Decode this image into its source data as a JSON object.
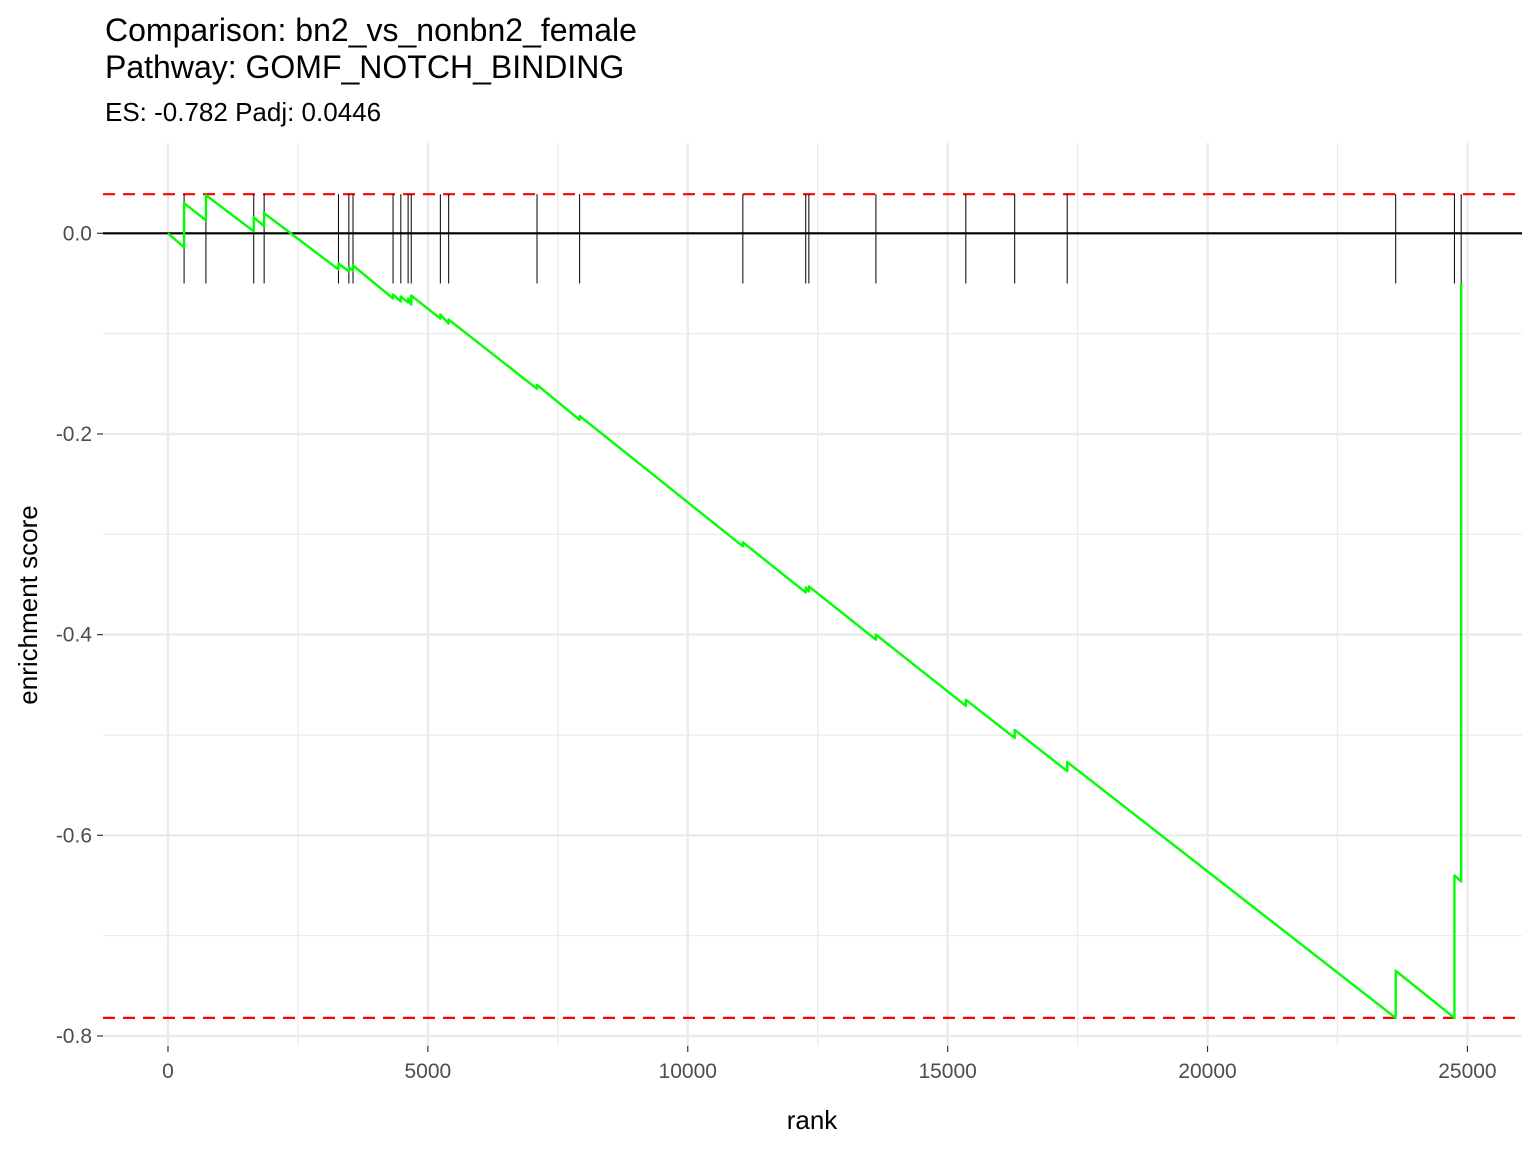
{
  "chart_data": {
    "type": "line",
    "title_lines": [
      "Comparison: bn2_vs_nonbn2_female",
      "Pathway: GOMF_NOTCH_BINDING"
    ],
    "subtitle": "ES: -0.782 Padj: 0.0446",
    "xlabel": "rank",
    "ylabel": "enrichment score",
    "xlim": [
      -1250,
      26050
    ],
    "ylim": [
      -0.81,
      0.09
    ],
    "x_ticks": [
      0,
      5000,
      10000,
      15000,
      20000,
      25000
    ],
    "x_tick_labels": [
      "0",
      "5000",
      "10000",
      "15000",
      "20000",
      "25000"
    ],
    "y_ticks": [
      0.0,
      -0.2,
      -0.4,
      -0.6,
      -0.8
    ],
    "y_tick_labels": [
      "0.0",
      "-0.2",
      "-0.4",
      "-0.6",
      "-0.8"
    ],
    "grid": true,
    "zero_line": 0,
    "threshold_lines": [
      0.039,
      -0.782
    ],
    "hit_ranks": [
      310,
      730,
      1650,
      1850,
      3280,
      3480,
      3560,
      4330,
      4480,
      4620,
      4680,
      5240,
      5400,
      7100,
      7920,
      11060,
      12270,
      12330,
      13620,
      15350,
      16290,
      17300,
      23620,
      24750,
      24880
    ],
    "series": [
      {
        "x": [
          0,
          310,
          310,
          730,
          730,
          1650,
          1650,
          1850,
          1850,
          3280,
          3280,
          3480,
          3480,
          3560,
          3560,
          4330,
          4330,
          4480,
          4480,
          4620,
          4620,
          4680,
          4680,
          5240,
          5240,
          5400,
          5400,
          7100,
          7100,
          7920,
          7920,
          11060,
          11060,
          12270,
          12270,
          12330,
          12330,
          13620,
          13620,
          15350,
          15350,
          16290,
          16290,
          17300,
          17300,
          23620,
          23620,
          24750,
          24750,
          24880,
          24880
        ],
        "y": [
          0,
          -0.014,
          0.03,
          0.013,
          0.038,
          0.002,
          0.016,
          0.007,
          0.02,
          -0.036,
          -0.03,
          -0.038,
          -0.034,
          -0.037,
          -0.032,
          -0.065,
          -0.061,
          -0.068,
          -0.063,
          -0.069,
          -0.065,
          -0.071,
          -0.062,
          -0.085,
          -0.081,
          -0.09,
          -0.086,
          -0.155,
          -0.151,
          -0.186,
          -0.182,
          -0.312,
          -0.308,
          -0.358,
          -0.353,
          -0.357,
          -0.352,
          -0.405,
          -0.4,
          -0.471,
          -0.465,
          -0.503,
          -0.495,
          -0.536,
          -0.527,
          -0.782,
          -0.735,
          -0.782,
          -0.64,
          -0.646,
          -0.05
        ]
      }
    ],
    "colors": {
      "es_line": "#00ff00",
      "threshold": "#ff0000",
      "hit_ticks": "#000000",
      "zero_line": "#000000",
      "grid": "#ebebeb"
    }
  }
}
